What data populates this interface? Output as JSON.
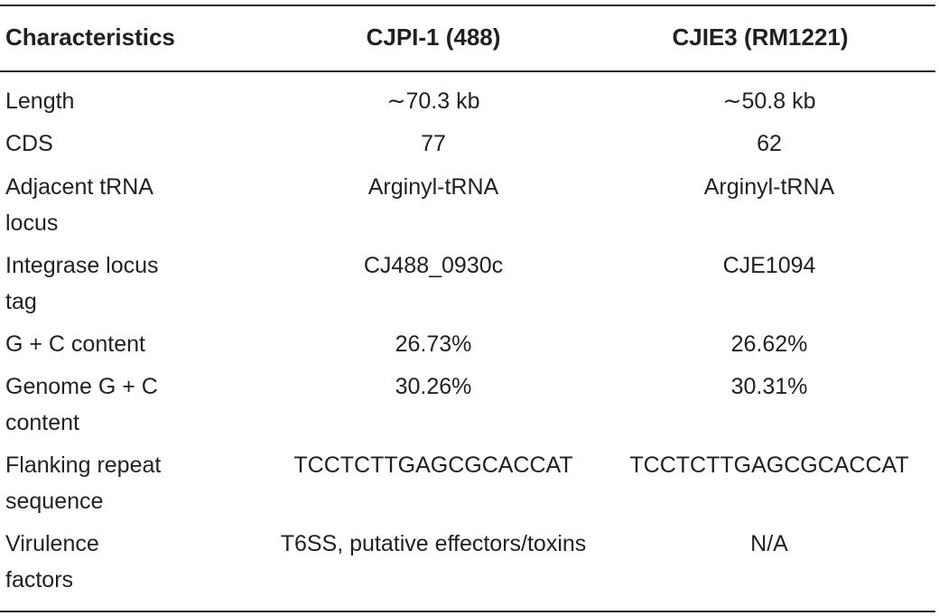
{
  "table": {
    "headers": [
      "Characteristics",
      "CJPI-1 (488)",
      "CJIE3 (RM1221)"
    ],
    "rows": [
      {
        "label": [
          "Length"
        ],
        "c2": "∼70.3 kb",
        "c3": "∼50.8 kb"
      },
      {
        "label": [
          "CDS"
        ],
        "c2": "77",
        "c3": "62"
      },
      {
        "label": [
          "Adjacent tRNA",
          "locus"
        ],
        "c2": "Arginyl-tRNA",
        "c3": "Arginyl-tRNA"
      },
      {
        "label": [
          "Integrase locus",
          "tag"
        ],
        "c2": "CJ488_0930c",
        "c3": "CJE1094"
      },
      {
        "label": [
          "G + C content"
        ],
        "c2": "26.73%",
        "c3": "26.62%"
      },
      {
        "label": [
          "Genome G + C",
          "content"
        ],
        "c2": "30.26%",
        "c3": "30.31%"
      },
      {
        "label": [
          "Flanking repeat",
          "sequence"
        ],
        "c2": "TCCTCTTGAGCGCACCAT",
        "c3": "TCCTCTTGAGCGCACCAT"
      },
      {
        "label": [
          "Virulence",
          "factors"
        ],
        "c2": "T6SS, putative effectors/toxins",
        "c3": "N/A"
      }
    ]
  }
}
